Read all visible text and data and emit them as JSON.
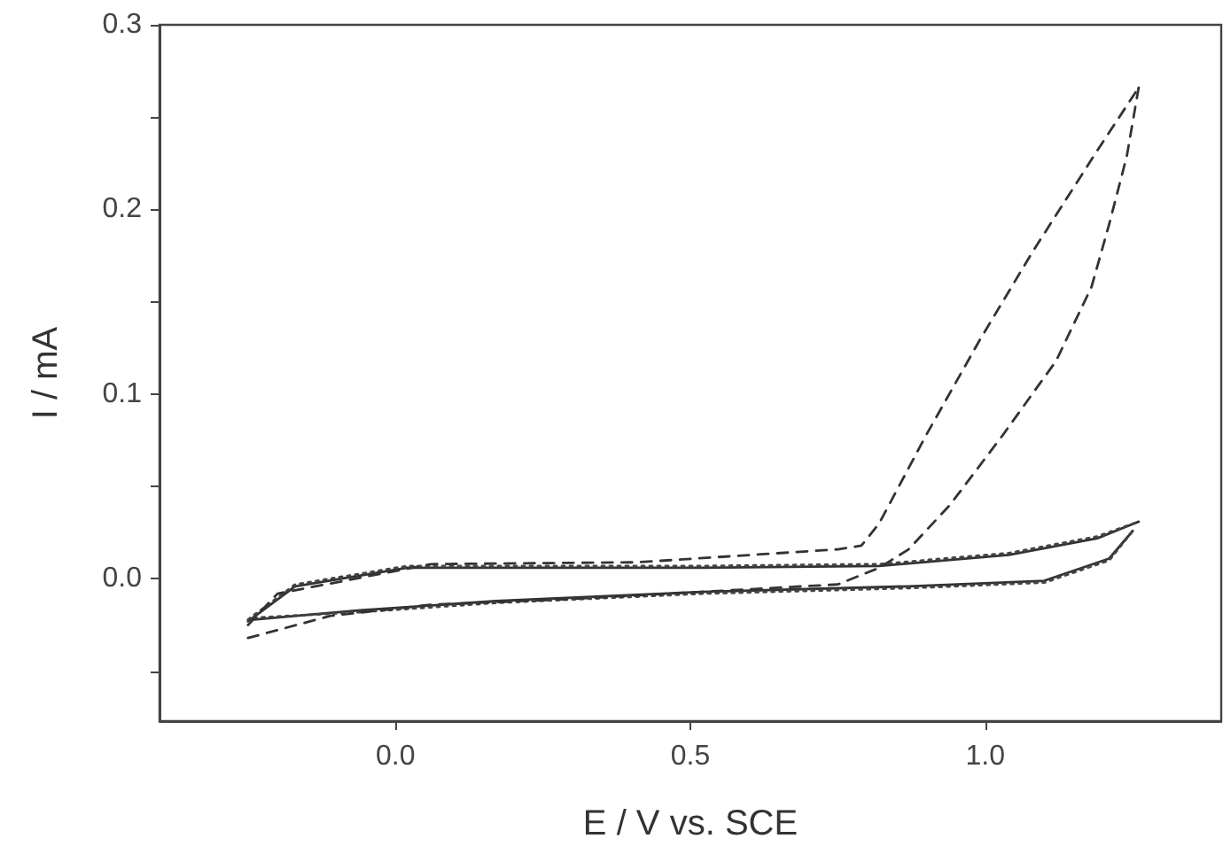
{
  "chart_data": {
    "type": "line",
    "xlabel": "E / V vs. SCE",
    "ylabel": "I / mA",
    "xlim": [
      -0.4,
      1.4
    ],
    "ylim": [
      -0.077,
      0.3
    ],
    "xticks": [
      {
        "value": 0,
        "label": "0.0"
      },
      {
        "value": 0.5,
        "label": "0.5"
      },
      {
        "value": 1,
        "label": "1.0"
      }
    ],
    "yticks": [
      {
        "value": -0.05,
        "label": null
      },
      {
        "value": 0,
        "label": "0.0"
      },
      {
        "value": 0.05,
        "label": null
      },
      {
        "value": 0.1,
        "label": "0.1"
      },
      {
        "value": 0.15,
        "label": null
      },
      {
        "value": 0.2,
        "label": "0.2"
      },
      {
        "value": 0.25,
        "label": null
      },
      {
        "value": 0.3,
        "label": "0.3"
      }
    ],
    "grid": false,
    "marker": "none",
    "series": [
      {
        "color": "#333333",
        "line_style": "solid",
        "x": [
          -0.25,
          -0.17,
          0.02,
          0.52,
          0.82,
          1.04,
          1.19,
          1.26
        ],
        "values": [
          -0.023,
          -0.004,
          0.006,
          0.006,
          0.007,
          0.013,
          0.022,
          0.031
        ]
      },
      {
        "color": "#333333",
        "line_style": "solid",
        "x": [
          -0.24,
          -0.06,
          0.17,
          0.52,
          0.87,
          1.1,
          1.21,
          1.25
        ],
        "values": [
          -0.022,
          -0.017,
          -0.012,
          -0.007,
          -0.004,
          -0.001,
          0.011,
          0.026
        ]
      },
      {
        "color": "#444444",
        "line_style": "dotted",
        "x": [
          -0.25,
          -0.17,
          0.02,
          0.52,
          0.82,
          1.04,
          1.19,
          1.26
        ],
        "values": [
          -0.022,
          -0.003,
          0.007,
          0.007,
          0.008,
          0.014,
          0.023,
          0.031
        ]
      },
      {
        "color": "#444444",
        "line_style": "dotted",
        "x": [
          -0.24,
          -0.06,
          0.17,
          0.52,
          0.87,
          1.1,
          1.21,
          1.25
        ],
        "values": [
          -0.021,
          -0.018,
          -0.013,
          -0.008,
          -0.005,
          -0.002,
          0.01,
          0.026
        ]
      },
      {
        "color": "#333333",
        "line_style": "dashed",
        "x": [
          -0.25,
          -0.2,
          0.06,
          0.41,
          0.75,
          0.79,
          0.82,
          0.9,
          0.99,
          1.08,
          1.19,
          1.26
        ],
        "values": [
          -0.025,
          -0.008,
          0.008,
          0.009,
          0.016,
          0.018,
          0.03,
          0.078,
          0.129,
          0.177,
          0.232,
          0.266
        ]
      },
      {
        "color": "#333333",
        "line_style": "dashed",
        "x": [
          -0.25,
          -0.11,
          0.06,
          0.29,
          0.52,
          0.75,
          0.82,
          0.87,
          0.94,
          1.03,
          1.12,
          1.18,
          1.21,
          1.24,
          1.26
        ],
        "values": [
          -0.032,
          -0.02,
          -0.014,
          -0.011,
          -0.007,
          -0.003,
          0.006,
          0.016,
          0.04,
          0.078,
          0.118,
          0.158,
          0.192,
          0.229,
          0.266
        ]
      }
    ]
  }
}
